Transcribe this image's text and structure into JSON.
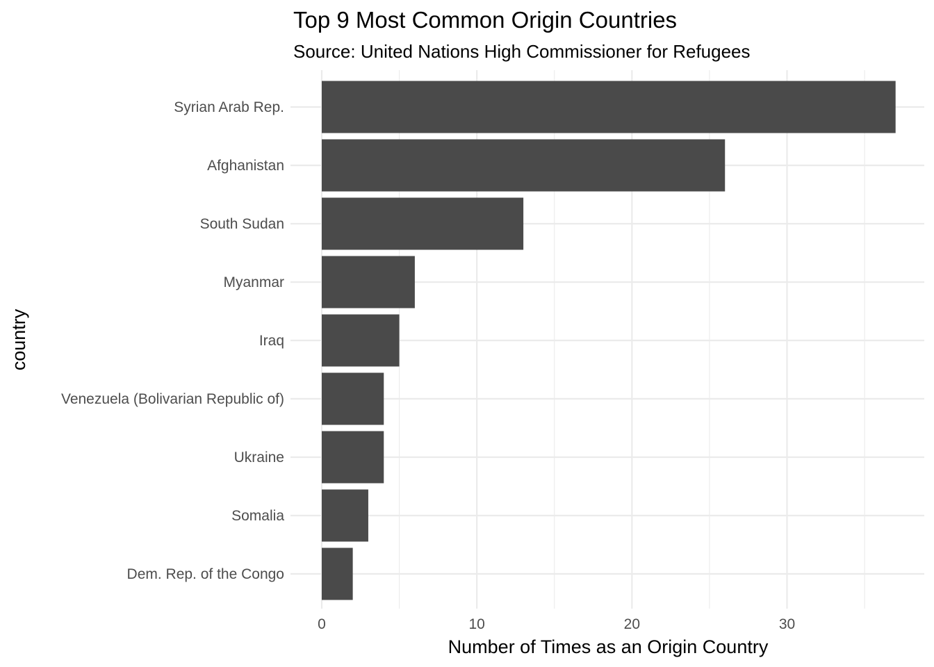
{
  "chart_data": {
    "type": "bar",
    "orientation": "horizontal",
    "title": "Top 9 Most Common Origin Countries",
    "subtitle": "Source: United Nations High Commissioner for Refugees",
    "xlabel": "Number of Times as an Origin Country",
    "ylabel": "country",
    "categories": [
      "Syrian Arab Rep.",
      "Afghanistan",
      "South Sudan",
      "Myanmar",
      "Iraq",
      "Venezuela (Bolivarian Republic of)",
      "Ukraine",
      "Somalia",
      "Dem. Rep. of the Congo"
    ],
    "values": [
      37,
      26,
      13,
      6,
      5,
      4,
      4,
      3,
      2
    ],
    "xlim": [
      0,
      38.85
    ],
    "x_ticks": [
      0,
      10,
      20,
      30
    ],
    "x_tick_labels": [
      "0",
      "10",
      "20",
      "30"
    ],
    "x_minor_ticks": [
      5,
      15,
      25,
      35
    ],
    "grid": true,
    "bar_color": "#4a4a4a",
    "grid_color": "#ebebeb"
  }
}
